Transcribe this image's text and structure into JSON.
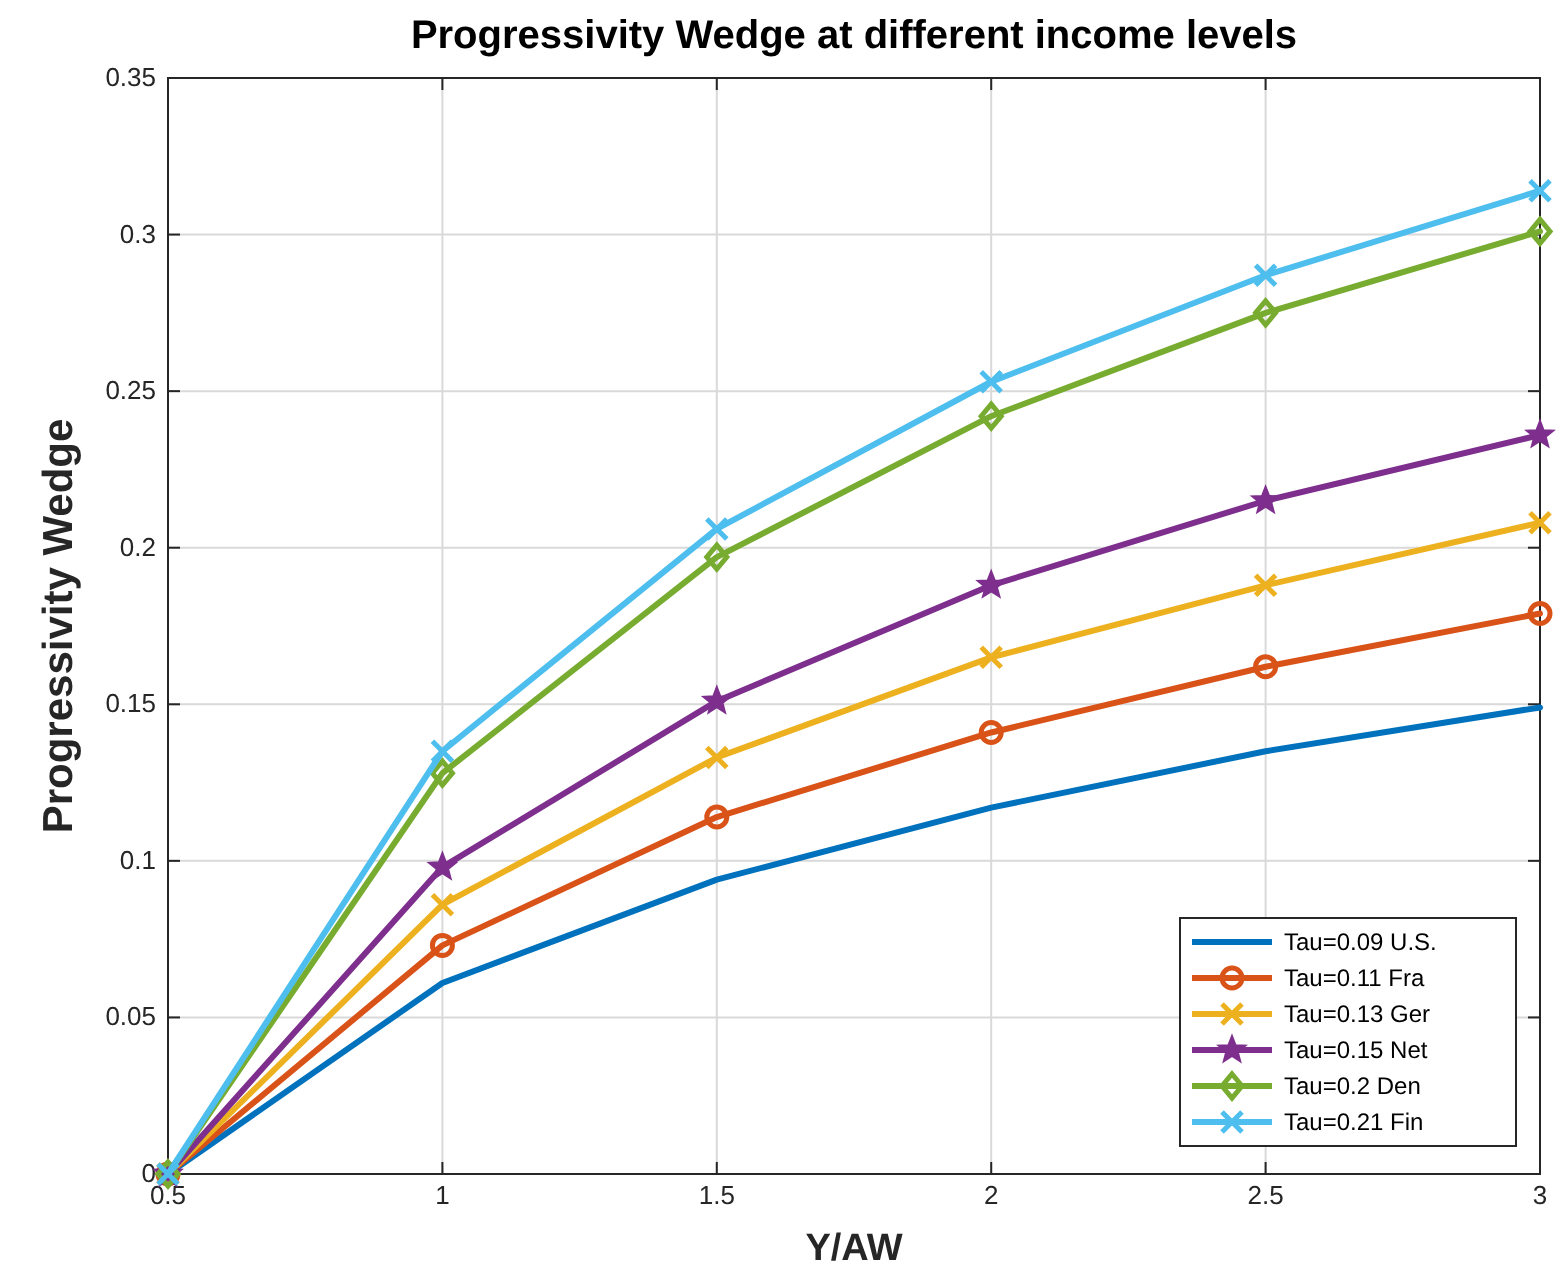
{
  "chart_data": {
    "type": "line",
    "title": "Progressivity Wedge at different income levels",
    "xlabel": "Y/AW",
    "ylabel": "Progressivity Wedge",
    "x": [
      0.5,
      1,
      1.5,
      2,
      2.5,
      3
    ],
    "series": [
      {
        "name": "Tau=0.09 U.S.",
        "color": "#0072bd",
        "marker": "none",
        "values": [
          0,
          0.061,
          0.094,
          0.117,
          0.135,
          0.149
        ]
      },
      {
        "name": "Tau=0.11 Fra",
        "color": "#d95319",
        "marker": "circle",
        "values": [
          0,
          0.073,
          0.114,
          0.141,
          0.162,
          0.179
        ]
      },
      {
        "name": "Tau=0.13 Ger",
        "color": "#edb120",
        "marker": "cross",
        "values": [
          0,
          0.086,
          0.133,
          0.165,
          0.188,
          0.208
        ]
      },
      {
        "name": "Tau=0.15 Net",
        "color": "#7e2f8e",
        "marker": "star",
        "values": [
          0,
          0.098,
          0.151,
          0.188,
          0.215,
          0.236
        ]
      },
      {
        "name": "Tau=0.2 Den",
        "color": "#77ac30",
        "marker": "diamond",
        "values": [
          0,
          0.128,
          0.197,
          0.242,
          0.275,
          0.301
        ]
      },
      {
        "name": "Tau=0.21 Fin",
        "color": "#4dbeee",
        "marker": "cross",
        "values": [
          0,
          0.135,
          0.206,
          0.253,
          0.287,
          0.314
        ]
      }
    ],
    "xlim": [
      0.5,
      3
    ],
    "xticks": [
      0.5,
      1,
      1.5,
      2,
      2.5,
      3
    ],
    "ylim": [
      0,
      0.35
    ],
    "yticks": [
      0,
      0.05,
      0.1,
      0.15,
      0.2,
      0.25,
      0.3,
      0.35
    ],
    "grid": true,
    "legend": "bottom right",
    "line_style": "solid"
  }
}
